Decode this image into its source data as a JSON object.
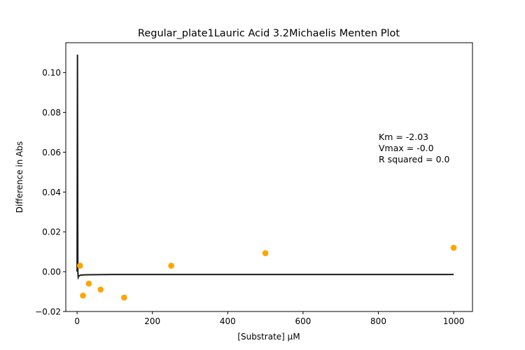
{
  "chart_data": {
    "type": "scatter",
    "title": "Regular_plate1Lauric Acid 3.2Michaelis Menten Plot",
    "xlabel": "[Substrate] µM",
    "ylabel": "Difference in Abs",
    "xlim": [
      -30,
      1050
    ],
    "ylim": [
      -0.02,
      0.115
    ],
    "x_ticks": [
      0,
      200,
      400,
      600,
      800,
      1000
    ],
    "x_tick_labels": [
      "0",
      "200",
      "400",
      "600",
      "800",
      "1000"
    ],
    "y_ticks": [
      -0.02,
      0.0,
      0.02,
      0.04,
      0.06,
      0.08,
      0.1
    ],
    "y_tick_labels": [
      "−0.02",
      "0.00",
      "0.02",
      "0.04",
      "0.06",
      "0.08",
      "0.10"
    ],
    "grid": false,
    "series": [
      {
        "kind": "points",
        "color": "#ffa500",
        "x": [
          7.8,
          15.6,
          31.25,
          62.5,
          125,
          250,
          500,
          1000
        ],
        "y": [
          0.003,
          -0.012,
          -0.006,
          -0.009,
          -0.013,
          0.003,
          0.0093,
          0.012
        ]
      },
      {
        "kind": "fit-line",
        "color": "#1a1a1a",
        "x": [
          0,
          1,
          2,
          3,
          4,
          5,
          7,
          10,
          20,
          50,
          100,
          200,
          400,
          600,
          800,
          1000
        ],
        "y": [
          0.0,
          0.109,
          0.0,
          -0.0028,
          -0.0024,
          -0.0021,
          -0.0019,
          -0.0017,
          -0.0016,
          -0.0015,
          -0.0014,
          -0.0014,
          -0.0014,
          -0.0014,
          -0.0014,
          -0.0014
        ]
      }
    ],
    "annotations": [
      "Km = -2.03",
      "Vmax = -0.0",
      "R squared = 0.0"
    ]
  }
}
